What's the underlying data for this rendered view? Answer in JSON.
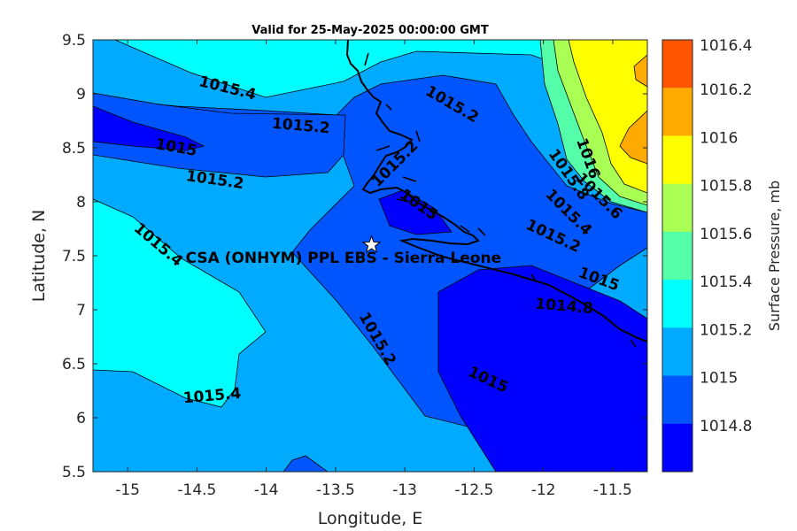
{
  "title": "Valid for 25-May-2025 00:00:00 GMT",
  "colors": {
    "c1014_8": "#0000ff",
    "c1015_0": "#0055ff",
    "c1015_2": "#00aaff",
    "c1015_4": "#00ffff",
    "c1015_6": "#55ffaa",
    "c1015_8": "#aaff55",
    "c1016_0": "#ffff00",
    "c1016_2": "#ffaa00",
    "c1016_4": "#ff5500"
  },
  "chart_data": {
    "type": "contour-map",
    "xlabel": "Longitude, E",
    "ylabel": "Latitude, N",
    "xlim": [
      -15.25,
      -11.25
    ],
    "ylim": [
      5.5,
      9.5
    ],
    "xticks": [
      "-15",
      "-14.5",
      "-14",
      "-13.5",
      "-13",
      "-12.5",
      "-12",
      "-11.5"
    ],
    "yticks": [
      "9.5",
      "9",
      "8.5",
      "8",
      "7.5",
      "7",
      "6.5",
      "6",
      "5.5"
    ],
    "colorbar": {
      "label": "Surface Pressure, mb",
      "levels": [
        "1016.4",
        "1016.2",
        "1016",
        "1015.8",
        "1015.6",
        "1015.4",
        "1015.2",
        "1015",
        "1014.8"
      ]
    },
    "contour_labels": [
      {
        "text": "1015.4",
        "lon": -14.28,
        "lat": 9.05,
        "rot": 14
      },
      {
        "text": "1015.2",
        "lon": -13.75,
        "lat": 8.7,
        "rot": 5
      },
      {
        "text": "1015",
        "lon": -14.65,
        "lat": 8.5,
        "rot": 10
      },
      {
        "text": "1015.2",
        "lon": -14.37,
        "lat": 8.2,
        "rot": 8
      },
      {
        "text": "1015.4",
        "lon": -14.78,
        "lat": 7.6,
        "rot": 40
      },
      {
        "text": "1015.2",
        "lon": -12.66,
        "lat": 8.9,
        "rot": 30
      },
      {
        "text": "1015.2",
        "lon": -13.07,
        "lat": 8.35,
        "rot": -45
      },
      {
        "text": "1015",
        "lon": -12.9,
        "lat": 7.97,
        "rot": 35
      },
      {
        "text": "1016",
        "lon": -11.68,
        "lat": 8.4,
        "rot": 70
      },
      {
        "text": "1015.8",
        "lon": -11.82,
        "lat": 8.25,
        "rot": 55
      },
      {
        "text": "1015.6",
        "lon": -11.6,
        "lat": 8.05,
        "rot": 45
      },
      {
        "text": "1015.4",
        "lon": -11.82,
        "lat": 7.9,
        "rot": 45
      },
      {
        "text": "1015.2",
        "lon": -11.93,
        "lat": 7.68,
        "rot": 25
      },
      {
        "text": "1015",
        "lon": -11.6,
        "lat": 7.28,
        "rot": 20
      },
      {
        "text": "1014.8",
        "lon": -11.85,
        "lat": 7.03,
        "rot": 5
      },
      {
        "text": "1015.2",
        "lon": -13.2,
        "lat": 6.73,
        "rot": 60
      },
      {
        "text": "1015",
        "lon": -12.4,
        "lat": 6.35,
        "rot": 25
      },
      {
        "text": "1015.4",
        "lon": -14.39,
        "lat": 6.2,
        "rot": -5
      }
    ],
    "site": {
      "name": "CSA (ONHYM) PPL EBS  - Sierra Leone",
      "lon": -13.24,
      "lat": 7.6
    }
  }
}
